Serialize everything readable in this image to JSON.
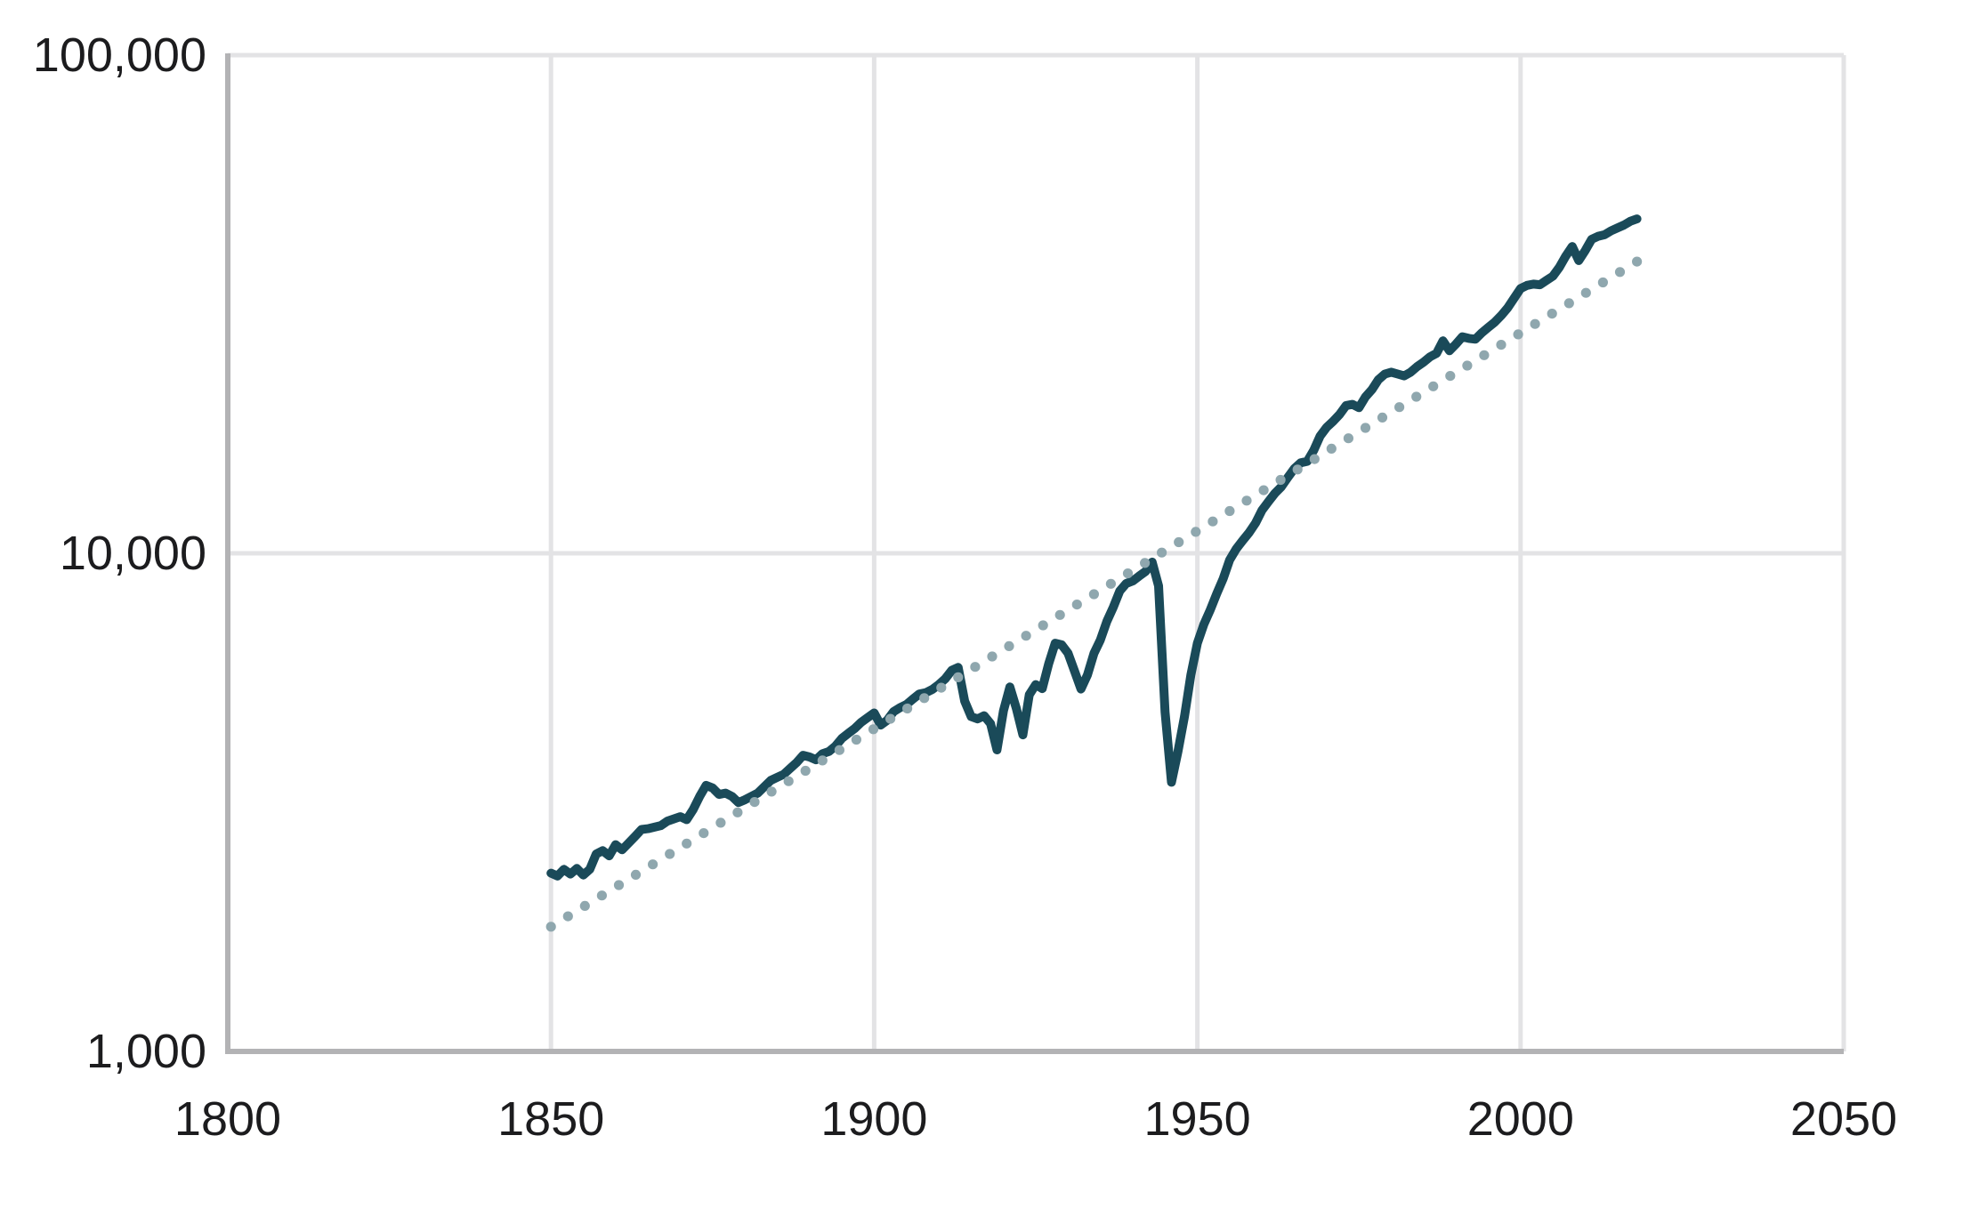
{
  "chart_data": {
    "type": "line",
    "title": "",
    "xlabel": "",
    "ylabel": "",
    "x_axis": {
      "range": [
        1800,
        2050
      ],
      "tick_labels": [
        "1800",
        "1850",
        "1900",
        "1950",
        "2000",
        "2050"
      ],
      "tick_values": [
        1800,
        1850,
        1900,
        1950,
        2000,
        2050
      ]
    },
    "y_axis": {
      "scale": "log",
      "range": [
        1000,
        100000
      ],
      "tick_labels": [
        "1,000",
        "10,000",
        "100,000"
      ],
      "tick_values": [
        1000,
        10000,
        100000
      ]
    },
    "grid": true,
    "legend": "none",
    "series": [
      {
        "name": "observed-line",
        "style": "solid",
        "color": "#1a4a59",
        "points": [
          [
            1850,
            2280
          ],
          [
            1851,
            2250
          ],
          [
            1852,
            2320
          ],
          [
            1853,
            2270
          ],
          [
            1854,
            2330
          ],
          [
            1855,
            2260
          ],
          [
            1856,
            2320
          ],
          [
            1857,
            2490
          ],
          [
            1858,
            2530
          ],
          [
            1859,
            2470
          ],
          [
            1860,
            2600
          ],
          [
            1861,
            2540
          ],
          [
            1862,
            2620
          ],
          [
            1863,
            2700
          ],
          [
            1864,
            2790
          ],
          [
            1865,
            2800
          ],
          [
            1866,
            2820
          ],
          [
            1867,
            2840
          ],
          [
            1868,
            2900
          ],
          [
            1869,
            2930
          ],
          [
            1870,
            2960
          ],
          [
            1871,
            2920
          ],
          [
            1872,
            3060
          ],
          [
            1873,
            3250
          ],
          [
            1874,
            3420
          ],
          [
            1875,
            3380
          ],
          [
            1876,
            3280
          ],
          [
            1877,
            3300
          ],
          [
            1878,
            3250
          ],
          [
            1879,
            3160
          ],
          [
            1880,
            3200
          ],
          [
            1881,
            3250
          ],
          [
            1882,
            3300
          ],
          [
            1883,
            3400
          ],
          [
            1884,
            3500
          ],
          [
            1885,
            3550
          ],
          [
            1886,
            3600
          ],
          [
            1887,
            3700
          ],
          [
            1888,
            3800
          ],
          [
            1889,
            3930
          ],
          [
            1890,
            3900
          ],
          [
            1891,
            3850
          ],
          [
            1892,
            3960
          ],
          [
            1893,
            4000
          ],
          [
            1894,
            4100
          ],
          [
            1895,
            4250
          ],
          [
            1896,
            4350
          ],
          [
            1897,
            4450
          ],
          [
            1898,
            4580
          ],
          [
            1899,
            4680
          ],
          [
            1900,
            4780
          ],
          [
            1901,
            4520
          ],
          [
            1902,
            4620
          ],
          [
            1903,
            4810
          ],
          [
            1904,
            4900
          ],
          [
            1905,
            4970
          ],
          [
            1906,
            5100
          ],
          [
            1907,
            5220
          ],
          [
            1908,
            5250
          ],
          [
            1909,
            5330
          ],
          [
            1910,
            5450
          ],
          [
            1911,
            5600
          ],
          [
            1912,
            5820
          ],
          [
            1913,
            5900
          ],
          [
            1914,
            5050
          ],
          [
            1915,
            4700
          ],
          [
            1916,
            4650
          ],
          [
            1917,
            4720
          ],
          [
            1918,
            4550
          ],
          [
            1919,
            4030
          ],
          [
            1920,
            4830
          ],
          [
            1921,
            5390
          ],
          [
            1922,
            4880
          ],
          [
            1923,
            4320
          ],
          [
            1924,
            5200
          ],
          [
            1925,
            5450
          ],
          [
            1926,
            5350
          ],
          [
            1927,
            6000
          ],
          [
            1928,
            6600
          ],
          [
            1929,
            6550
          ],
          [
            1930,
            6300
          ],
          [
            1931,
            5800
          ],
          [
            1932,
            5340
          ],
          [
            1933,
            5700
          ],
          [
            1934,
            6300
          ],
          [
            1935,
            6700
          ],
          [
            1936,
            7300
          ],
          [
            1937,
            7800
          ],
          [
            1938,
            8400
          ],
          [
            1939,
            8700
          ],
          [
            1940,
            8800
          ],
          [
            1941,
            9000
          ],
          [
            1942,
            9200
          ],
          [
            1943,
            9600
          ],
          [
            1944,
            8600
          ],
          [
            1945,
            4800
          ],
          [
            1946,
            3470
          ],
          [
            1947,
            4000
          ],
          [
            1948,
            4700
          ],
          [
            1949,
            5700
          ],
          [
            1950,
            6600
          ],
          [
            1951,
            7200
          ],
          [
            1952,
            7700
          ],
          [
            1953,
            8300
          ],
          [
            1954,
            8900
          ],
          [
            1955,
            9700
          ],
          [
            1956,
            10200
          ],
          [
            1957,
            10600
          ],
          [
            1958,
            11000
          ],
          [
            1959,
            11500
          ],
          [
            1960,
            12200
          ],
          [
            1961,
            12700
          ],
          [
            1962,
            13200
          ],
          [
            1963,
            13600
          ],
          [
            1964,
            14200
          ],
          [
            1965,
            14800
          ],
          [
            1966,
            15200
          ],
          [
            1967,
            15300
          ],
          [
            1968,
            16100
          ],
          [
            1969,
            17200
          ],
          [
            1970,
            17900
          ],
          [
            1971,
            18400
          ],
          [
            1972,
            19000
          ],
          [
            1973,
            19800
          ],
          [
            1974,
            19900
          ],
          [
            1975,
            19600
          ],
          [
            1976,
            20600
          ],
          [
            1977,
            21300
          ],
          [
            1978,
            22300
          ],
          [
            1979,
            22900
          ],
          [
            1980,
            23100
          ],
          [
            1981,
            22900
          ],
          [
            1982,
            22700
          ],
          [
            1983,
            23100
          ],
          [
            1984,
            23700
          ],
          [
            1985,
            24200
          ],
          [
            1986,
            24800
          ],
          [
            1987,
            25200
          ],
          [
            1988,
            26700
          ],
          [
            1989,
            25500
          ],
          [
            1990,
            26300
          ],
          [
            1991,
            27200
          ],
          [
            1992,
            27000
          ],
          [
            1993,
            26900
          ],
          [
            1994,
            27700
          ],
          [
            1995,
            28400
          ],
          [
            1996,
            29100
          ],
          [
            1997,
            30000
          ],
          [
            1998,
            31100
          ],
          [
            1999,
            32500
          ],
          [
            2000,
            34000
          ],
          [
            2001,
            34500
          ],
          [
            2002,
            34700
          ],
          [
            2003,
            34600
          ],
          [
            2004,
            35300
          ],
          [
            2005,
            36000
          ],
          [
            2006,
            37500
          ],
          [
            2007,
            39500
          ],
          [
            2008,
            41300
          ],
          [
            2009,
            38700
          ],
          [
            2010,
            40500
          ],
          [
            2011,
            42700
          ],
          [
            2012,
            43300
          ],
          [
            2013,
            43600
          ],
          [
            2014,
            44400
          ],
          [
            2015,
            45000
          ],
          [
            2016,
            45600
          ],
          [
            2017,
            46400
          ],
          [
            2018,
            46900
          ]
        ]
      },
      {
        "name": "exponential-trend",
        "style": "dotted",
        "color": "#8fa7ae",
        "trend": {
          "scale": "exponential",
          "start_year": 1850,
          "start_value": 1780,
          "end_year": 2018,
          "end_value": 38500
        }
      }
    ],
    "colors": {
      "line": "#1a4a59",
      "trend_dots": "#8fa7ae",
      "gridline": "#e3e3e5",
      "axis_line": "#b3b3b5",
      "tick_text": "#1c1c1e",
      "background": "#ffffff"
    }
  }
}
